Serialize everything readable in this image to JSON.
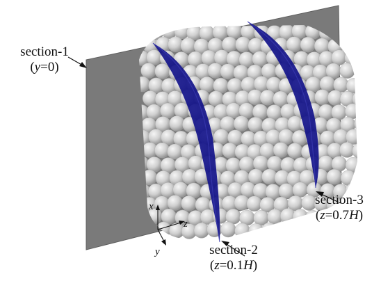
{
  "labels": {
    "section1": {
      "name": "section-1",
      "cond_var": "y",
      "cond_val": "=0"
    },
    "section2": {
      "name": "section-2",
      "cond_var": "z",
      "cond_mid": "=0.1",
      "cond_unit": "H"
    },
    "section3": {
      "name": "section-3",
      "cond_var": "z",
      "cond_mid": "=0.7",
      "cond_unit": "H"
    }
  },
  "axes": {
    "x": "x",
    "y": "y",
    "z": "z"
  },
  "colors": {
    "plane": "#7a7a7a",
    "plane_edge": "#5e5e5e",
    "sphere_light": "#f6f6f6",
    "sphere_mid": "#cfcfcf",
    "sphere_dark": "#8e8e8e",
    "ring": "#13138a",
    "text": "#111111"
  }
}
